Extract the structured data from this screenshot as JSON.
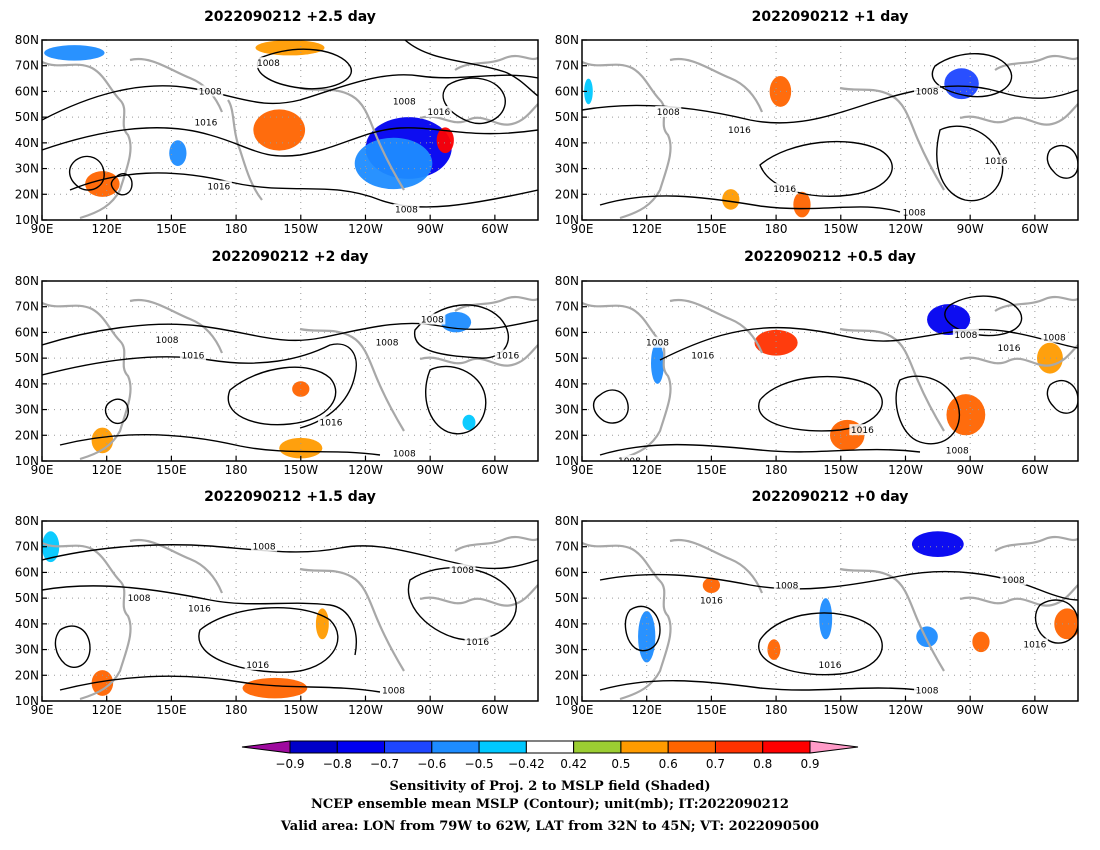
{
  "chart_data": {
    "type": "heatmap",
    "panels": [
      {
        "title": "2022090212 +2.5 day",
        "contour_labels": [
          {
            "text": "1008",
            "lon": 195,
            "lat": 71
          },
          {
            "text": "1008",
            "lon": 168,
            "lat": 60
          },
          {
            "text": "1008",
            "lon": 258,
            "lat": 56
          },
          {
            "text": "1016",
            "lon": 274,
            "lat": 52
          },
          {
            "text": "1016",
            "lon": 166,
            "lat": 48
          },
          {
            "text": "1016",
            "lon": 172,
            "lat": 23
          },
          {
            "text": "1008",
            "lon": 259,
            "lat": 14
          }
        ],
        "shaded": [
          {
            "value": -0.8,
            "lon": 260,
            "lat": 38,
            "rx": 20,
            "ry": 12
          },
          {
            "value": -0.6,
            "lon": 253,
            "lat": 32,
            "rx": 18,
            "ry": 10
          },
          {
            "value": 0.8,
            "lon": 277,
            "lat": 41,
            "rx": 4,
            "ry": 5
          },
          {
            "value": -0.6,
            "lon": 105,
            "lat": 75,
            "rx": 14,
            "ry": 3
          },
          {
            "value": 0.6,
            "lon": 200,
            "lat": 45,
            "rx": 12,
            "ry": 8
          },
          {
            "value": 0.5,
            "lon": 205,
            "lat": 77,
            "rx": 16,
            "ry": 3
          },
          {
            "value": 0.6,
            "lon": 118,
            "lat": 24,
            "rx": 8,
            "ry": 5
          },
          {
            "value": -0.6,
            "lon": 153,
            "lat": 36,
            "rx": 4,
            "ry": 5
          }
        ]
      },
      {
        "title": "2022090212 +1 day",
        "contour_labels": [
          {
            "text": "1008",
            "lon": 250,
            "lat": 60
          },
          {
            "text": "1008",
            "lon": 130,
            "lat": 52
          },
          {
            "text": "1016",
            "lon": 163,
            "lat": 45
          },
          {
            "text": "1016",
            "lon": 184,
            "lat": 22
          },
          {
            "text": "1016",
            "lon": 282,
            "lat": 33
          },
          {
            "text": "1008",
            "lon": 244,
            "lat": 13
          }
        ],
        "shaded": [
          {
            "value": -0.7,
            "lon": 266,
            "lat": 63,
            "rx": 8,
            "ry": 6
          },
          {
            "value": 0.6,
            "lon": 182,
            "lat": 60,
            "rx": 5,
            "ry": 6
          },
          {
            "value": 0.6,
            "lon": 192,
            "lat": 16,
            "rx": 4,
            "ry": 5
          },
          {
            "value": 0.5,
            "lon": 159,
            "lat": 18,
            "rx": 4,
            "ry": 4
          },
          {
            "value": -0.5,
            "lon": 93,
            "lat": 60,
            "rx": 2,
            "ry": 5
          }
        ]
      },
      {
        "title": "2022090212 +2 day",
        "contour_labels": [
          {
            "text": "1008",
            "lon": 271,
            "lat": 65
          },
          {
            "text": "1008",
            "lon": 148,
            "lat": 57
          },
          {
            "text": "1008",
            "lon": 250,
            "lat": 56
          },
          {
            "text": "1016",
            "lon": 160,
            "lat": 51
          },
          {
            "text": "1016",
            "lon": 306,
            "lat": 51
          },
          {
            "text": "1016",
            "lon": 224,
            "lat": 25
          },
          {
            "text": "1008",
            "lon": 258,
            "lat": 13
          }
        ],
        "shaded": [
          {
            "value": 0.6,
            "lon": 210,
            "lat": 38,
            "rx": 4,
            "ry": 3
          },
          {
            "value": 0.5,
            "lon": 210,
            "lat": 15,
            "rx": 10,
            "ry": 4
          },
          {
            "value": -0.6,
            "lon": 282,
            "lat": 64,
            "rx": 7,
            "ry": 4
          },
          {
            "value": 0.5,
            "lon": 118,
            "lat": 18,
            "rx": 5,
            "ry": 5
          },
          {
            "value": -0.5,
            "lon": 288,
            "lat": 25,
            "rx": 3,
            "ry": 3
          }
        ]
      },
      {
        "title": "2022090212 +0.5 day",
        "contour_labels": [
          {
            "text": "1008",
            "lon": 125,
            "lat": 56
          },
          {
            "text": "1016",
            "lon": 146,
            "lat": 51
          },
          {
            "text": "1008",
            "lon": 268,
            "lat": 59
          },
          {
            "text": "1016",
            "lon": 288,
            "lat": 54
          },
          {
            "text": "1008",
            "lon": 309,
            "lat": 58
          },
          {
            "text": "1016",
            "lon": 220,
            "lat": 22
          },
          {
            "text": "1008",
            "lon": 264,
            "lat": 14
          },
          {
            "text": "1008",
            "lon": 112,
            "lat": 10
          }
        ],
        "shaded": [
          {
            "value": -0.8,
            "lon": 260,
            "lat": 65,
            "rx": 10,
            "ry": 6
          },
          {
            "value": 0.7,
            "lon": 180,
            "lat": 56,
            "rx": 10,
            "ry": 5
          },
          {
            "value": 0.6,
            "lon": 268,
            "lat": 28,
            "rx": 9,
            "ry": 8
          },
          {
            "value": 0.6,
            "lon": 213,
            "lat": 20,
            "rx": 8,
            "ry": 6
          },
          {
            "value": 0.5,
            "lon": 307,
            "lat": 50,
            "rx": 6,
            "ry": 6
          },
          {
            "value": -0.6,
            "lon": 125,
            "lat": 48,
            "rx": 3,
            "ry": 8
          }
        ]
      },
      {
        "title": "2022090212 +1.5 day",
        "contour_labels": [
          {
            "text": "1008",
            "lon": 193,
            "lat": 70
          },
          {
            "text": "1008",
            "lon": 285,
            "lat": 61
          },
          {
            "text": "1008",
            "lon": 135,
            "lat": 50
          },
          {
            "text": "1016",
            "lon": 163,
            "lat": 46
          },
          {
            "text": "1016",
            "lon": 292,
            "lat": 33
          },
          {
            "text": "1016",
            "lon": 190,
            "lat": 24
          },
          {
            "text": "1008",
            "lon": 253,
            "lat": 14
          }
        ],
        "shaded": [
          {
            "value": 0.6,
            "lon": 198,
            "lat": 15,
            "rx": 15,
            "ry": 4
          },
          {
            "value": 0.6,
            "lon": 118,
            "lat": 17,
            "rx": 5,
            "ry": 5
          },
          {
            "value": -0.5,
            "lon": 94,
            "lat": 70,
            "rx": 4,
            "ry": 6
          },
          {
            "value": 0.5,
            "lon": 220,
            "lat": 40,
            "rx": 3,
            "ry": 6
          }
        ]
      },
      {
        "title": "2022090212 +0 day",
        "contour_labels": [
          {
            "text": "1008",
            "lon": 290,
            "lat": 57
          },
          {
            "text": "1008",
            "lon": 185,
            "lat": 55
          },
          {
            "text": "1016",
            "lon": 150,
            "lat": 49
          },
          {
            "text": "1016",
            "lon": 300,
            "lat": 32
          },
          {
            "text": "1016",
            "lon": 205,
            "lat": 24
          },
          {
            "text": "1008",
            "lon": 250,
            "lat": 14
          }
        ],
        "shaded": [
          {
            "value": -0.8,
            "lon": 255,
            "lat": 71,
            "rx": 12,
            "ry": 5
          },
          {
            "value": -0.6,
            "lon": 203,
            "lat": 42,
            "rx": 3,
            "ry": 8
          },
          {
            "value": -0.6,
            "lon": 120,
            "lat": 35,
            "rx": 4,
            "ry": 10
          },
          {
            "value": 0.6,
            "lon": 150,
            "lat": 55,
            "rx": 4,
            "ry": 3
          },
          {
            "value": 0.6,
            "lon": 315,
            "lat": 40,
            "rx": 6,
            "ry": 6
          },
          {
            "value": 0.6,
            "lon": 275,
            "lat": 33,
            "rx": 4,
            "ry": 4
          },
          {
            "value": 0.6,
            "lon": 179,
            "lat": 30,
            "rx": 3,
            "ry": 4
          },
          {
            "value": -0.6,
            "lon": 250,
            "lat": 35,
            "rx": 5,
            "ry": 4
          }
        ]
      }
    ],
    "x_ticks": [
      "90E",
      "120E",
      "150E",
      "180",
      "150W",
      "120W",
      "90W",
      "60W"
    ],
    "x_tick_lons": [
      90,
      120,
      150,
      180,
      210,
      240,
      270,
      300
    ],
    "y_ticks": [
      "10N",
      "20N",
      "30N",
      "40N",
      "50N",
      "60N",
      "70N",
      "80N"
    ],
    "y_tick_lats": [
      10,
      20,
      30,
      40,
      50,
      60,
      70,
      80
    ],
    "lon_range": [
      90,
      320
    ],
    "lat_range": [
      10,
      80
    ],
    "colorbar": {
      "levels": [
        "−0.9",
        "−0.8",
        "−0.7",
        "−0.6",
        "−0.5",
        "−0.42",
        "0.42",
        "0.5",
        "0.6",
        "0.7",
        "0.8",
        "0.9"
      ],
      "colors": [
        "#9e0a9e",
        "#0000c8",
        "#0000f0",
        "#1e46ff",
        "#1e8cff",
        "#00c8ff",
        "#ffffff",
        "#9bcd32",
        "#ff9b00",
        "#ff6400",
        "#ff3200",
        "#ff0000",
        "#ff9bc8"
      ]
    },
    "captions": [
      "Sensitivity of Proj. 2 to MSLP field (Shaded)",
      "NCEP ensemble mean MSLP (Contour); unit(mb); IT:2022090212",
      "Valid area: LON from 79W to 62W, LAT from 32N to 45N; VT: 2022090500"
    ]
  }
}
